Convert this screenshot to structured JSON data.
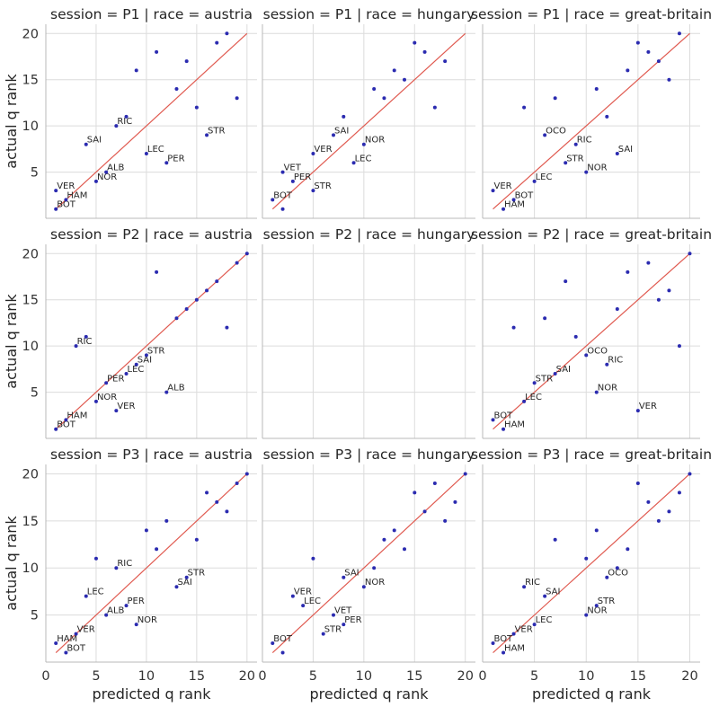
{
  "chart_data": {
    "type": "scatter",
    "xlabel": "predicted q rank",
    "ylabel": "actual q rank",
    "xlim": [
      0,
      21
    ],
    "ylim": [
      0,
      21
    ],
    "xticks": [
      0,
      5,
      10,
      15,
      20
    ],
    "yticks": [
      5,
      10,
      15,
      20
    ],
    "grid": true,
    "reference_line": {
      "from": [
        1,
        1
      ],
      "to": [
        20,
        20
      ],
      "color": "#e05a50"
    },
    "point_color": "#2b2bb0",
    "panels": [
      {
        "title": "session = P1 | race = austria",
        "points": [
          {
            "x": 1,
            "y": 1,
            "label": "BOT"
          },
          {
            "x": 2,
            "y": 2,
            "label": "HAM"
          },
          {
            "x": 1,
            "y": 3,
            "label": "VER"
          },
          {
            "x": 5,
            "y": 4,
            "label": "NOR"
          },
          {
            "x": 6,
            "y": 5,
            "label": "ALB"
          },
          {
            "x": 12,
            "y": 6,
            "label": "PER"
          },
          {
            "x": 10,
            "y": 7,
            "label": "LEC"
          },
          {
            "x": 4,
            "y": 8,
            "label": "SAI"
          },
          {
            "x": 16,
            "y": 9,
            "label": "STR"
          },
          {
            "x": 7,
            "y": 10,
            "label": "RIC"
          },
          {
            "x": 8,
            "y": 11
          },
          {
            "x": 15,
            "y": 12
          },
          {
            "x": 19,
            "y": 13
          },
          {
            "x": 13,
            "y": 14
          },
          {
            "x": 9,
            "y": 16
          },
          {
            "x": 14,
            "y": 17
          },
          {
            "x": 11,
            "y": 18
          },
          {
            "x": 17,
            "y": 19
          },
          {
            "x": 18,
            "y": 20
          }
        ]
      },
      {
        "title": "session = P1 | race = hungary",
        "points": [
          {
            "x": 2,
            "y": 1
          },
          {
            "x": 1,
            "y": 2,
            "label": "BOT"
          },
          {
            "x": 5,
            "y": 3,
            "label": "STR"
          },
          {
            "x": 3,
            "y": 4,
            "label": "PER"
          },
          {
            "x": 2,
            "y": 5,
            "label": "VET"
          },
          {
            "x": 9,
            "y": 6,
            "label": "LEC"
          },
          {
            "x": 5,
            "y": 7,
            "label": "VER"
          },
          {
            "x": 10,
            "y": 8,
            "label": "NOR"
          },
          {
            "x": 7,
            "y": 9,
            "label": "SAI"
          },
          {
            "x": 8,
            "y": 11
          },
          {
            "x": 17,
            "y": 12
          },
          {
            "x": 12,
            "y": 13
          },
          {
            "x": 11,
            "y": 14
          },
          {
            "x": 14,
            "y": 15
          },
          {
            "x": 13,
            "y": 16
          },
          {
            "x": 18,
            "y": 17
          },
          {
            "x": 16,
            "y": 18
          },
          {
            "x": 15,
            "y": 19
          }
        ]
      },
      {
        "title": "session = P1 | race = great-britain",
        "points": [
          {
            "x": 2,
            "y": 1,
            "label": "HAM"
          },
          {
            "x": 3,
            "y": 2,
            "label": "BOT"
          },
          {
            "x": 1,
            "y": 3,
            "label": "VER"
          },
          {
            "x": 5,
            "y": 4,
            "label": "LEC"
          },
          {
            "x": 10,
            "y": 5,
            "label": "NOR"
          },
          {
            "x": 8,
            "y": 6,
            "label": "STR"
          },
          {
            "x": 13,
            "y": 7,
            "label": "SAI"
          },
          {
            "x": 9,
            "y": 8,
            "label": "RIC"
          },
          {
            "x": 6,
            "y": 9,
            "label": "OCO"
          },
          {
            "x": 12,
            "y": 11
          },
          {
            "x": 4,
            "y": 12
          },
          {
            "x": 7,
            "y": 13
          },
          {
            "x": 11,
            "y": 14
          },
          {
            "x": 18,
            "y": 15
          },
          {
            "x": 14,
            "y": 16
          },
          {
            "x": 17,
            "y": 17
          },
          {
            "x": 16,
            "y": 18
          },
          {
            "x": 15,
            "y": 19
          },
          {
            "x": 19,
            "y": 20
          }
        ]
      },
      {
        "title": "session = P2 | race = austria",
        "points": [
          {
            "x": 1,
            "y": 1,
            "label": "BOT"
          },
          {
            "x": 2,
            "y": 2,
            "label": "HAM"
          },
          {
            "x": 7,
            "y": 3,
            "label": "VER"
          },
          {
            "x": 5,
            "y": 4,
            "label": "NOR"
          },
          {
            "x": 12,
            "y": 5,
            "label": "ALB"
          },
          {
            "x": 6,
            "y": 6,
            "label": "PER"
          },
          {
            "x": 8,
            "y": 7,
            "label": "LEC"
          },
          {
            "x": 9,
            "y": 8,
            "label": "SAI"
          },
          {
            "x": 10,
            "y": 9,
            "label": "STR"
          },
          {
            "x": 3,
            "y": 10,
            "label": "RIC"
          },
          {
            "x": 4,
            "y": 11
          },
          {
            "x": 18,
            "y": 12
          },
          {
            "x": 13,
            "y": 13
          },
          {
            "x": 14,
            "y": 14
          },
          {
            "x": 15,
            "y": 15
          },
          {
            "x": 16,
            "y": 16
          },
          {
            "x": 17,
            "y": 17
          },
          {
            "x": 11,
            "y": 18
          },
          {
            "x": 19,
            "y": 19
          },
          {
            "x": 20,
            "y": 20
          }
        ]
      },
      {
        "title": "session = P2 | race = hungary",
        "points": []
      },
      {
        "title": "session = P2 | race = great-britain",
        "points": [
          {
            "x": 2,
            "y": 1,
            "label": "HAM"
          },
          {
            "x": 1,
            "y": 2,
            "label": "BOT"
          },
          {
            "x": 15,
            "y": 3,
            "label": "VER"
          },
          {
            "x": 4,
            "y": 4,
            "label": "LEC"
          },
          {
            "x": 11,
            "y": 5,
            "label": "NOR"
          },
          {
            "x": 5,
            "y": 6,
            "label": "STR"
          },
          {
            "x": 7,
            "y": 7,
            "label": "SAI"
          },
          {
            "x": 12,
            "y": 8,
            "label": "RIC"
          },
          {
            "x": 10,
            "y": 9,
            "label": "OCO"
          },
          {
            "x": 19,
            "y": 10
          },
          {
            "x": 9,
            "y": 11
          },
          {
            "x": 3,
            "y": 12
          },
          {
            "x": 6,
            "y": 13
          },
          {
            "x": 13,
            "y": 14
          },
          {
            "x": 17,
            "y": 15
          },
          {
            "x": 18,
            "y": 16
          },
          {
            "x": 8,
            "y": 17
          },
          {
            "x": 14,
            "y": 18
          },
          {
            "x": 16,
            "y": 19
          },
          {
            "x": 20,
            "y": 20
          }
        ]
      },
      {
        "title": "session = P3 | race = austria",
        "points": [
          {
            "x": 2,
            "y": 1,
            "label": "BOT"
          },
          {
            "x": 1,
            "y": 2,
            "label": "HAM"
          },
          {
            "x": 3,
            "y": 3,
            "label": "VER"
          },
          {
            "x": 9,
            "y": 4,
            "label": "NOR"
          },
          {
            "x": 6,
            "y": 5,
            "label": "ALB"
          },
          {
            "x": 8,
            "y": 6,
            "label": "PER"
          },
          {
            "x": 4,
            "y": 7,
            "label": "LEC"
          },
          {
            "x": 13,
            "y": 8,
            "label": "SAI"
          },
          {
            "x": 14,
            "y": 9,
            "label": "STR"
          },
          {
            "x": 7,
            "y": 10,
            "label": "RIC"
          },
          {
            "x": 5,
            "y": 11
          },
          {
            "x": 11,
            "y": 12
          },
          {
            "x": 15,
            "y": 13
          },
          {
            "x": 10,
            "y": 14
          },
          {
            "x": 12,
            "y": 15
          },
          {
            "x": 18,
            "y": 16
          },
          {
            "x": 17,
            "y": 17
          },
          {
            "x": 16,
            "y": 18
          },
          {
            "x": 19,
            "y": 19
          },
          {
            "x": 20,
            "y": 20
          }
        ]
      },
      {
        "title": "session = P3 | race = hungary",
        "points": [
          {
            "x": 2,
            "y": 1
          },
          {
            "x": 1,
            "y": 2,
            "label": "BOT"
          },
          {
            "x": 6,
            "y": 3,
            "label": "STR"
          },
          {
            "x": 8,
            "y": 4,
            "label": "PER"
          },
          {
            "x": 7,
            "y": 5,
            "label": "VET"
          },
          {
            "x": 4,
            "y": 6,
            "label": "LEC"
          },
          {
            "x": 3,
            "y": 7,
            "label": "VER"
          },
          {
            "x": 10,
            "y": 8,
            "label": "NOR"
          },
          {
            "x": 8,
            "y": 9,
            "label": "SAI"
          },
          {
            "x": 11,
            "y": 10
          },
          {
            "x": 5,
            "y": 11
          },
          {
            "x": 14,
            "y": 12
          },
          {
            "x": 12,
            "y": 13
          },
          {
            "x": 13,
            "y": 14
          },
          {
            "x": 18,
            "y": 15
          },
          {
            "x": 16,
            "y": 16
          },
          {
            "x": 19,
            "y": 17
          },
          {
            "x": 15,
            "y": 18
          },
          {
            "x": 17,
            "y": 19
          },
          {
            "x": 20,
            "y": 20
          }
        ]
      },
      {
        "title": "session = P3 | race = great-britain",
        "points": [
          {
            "x": 2,
            "y": 1,
            "label": "HAM"
          },
          {
            "x": 1,
            "y": 2,
            "label": "BOT"
          },
          {
            "x": 3,
            "y": 3,
            "label": "VER"
          },
          {
            "x": 5,
            "y": 4,
            "label": "LEC"
          },
          {
            "x": 10,
            "y": 5,
            "label": "NOR"
          },
          {
            "x": 11,
            "y": 6,
            "label": "STR"
          },
          {
            "x": 6,
            "y": 7,
            "label": "SAI"
          },
          {
            "x": 4,
            "y": 8,
            "label": "RIC"
          },
          {
            "x": 12,
            "y": 9,
            "label": "OCO"
          },
          {
            "x": 13,
            "y": 10
          },
          {
            "x": 10,
            "y": 11
          },
          {
            "x": 14,
            "y": 12
          },
          {
            "x": 7,
            "y": 13
          },
          {
            "x": 11,
            "y": 14
          },
          {
            "x": 17,
            "y": 15
          },
          {
            "x": 18,
            "y": 16
          },
          {
            "x": 16,
            "y": 17
          },
          {
            "x": 19,
            "y": 18
          },
          {
            "x": 15,
            "y": 19
          },
          {
            "x": 20,
            "y": 20
          }
        ]
      }
    ]
  }
}
